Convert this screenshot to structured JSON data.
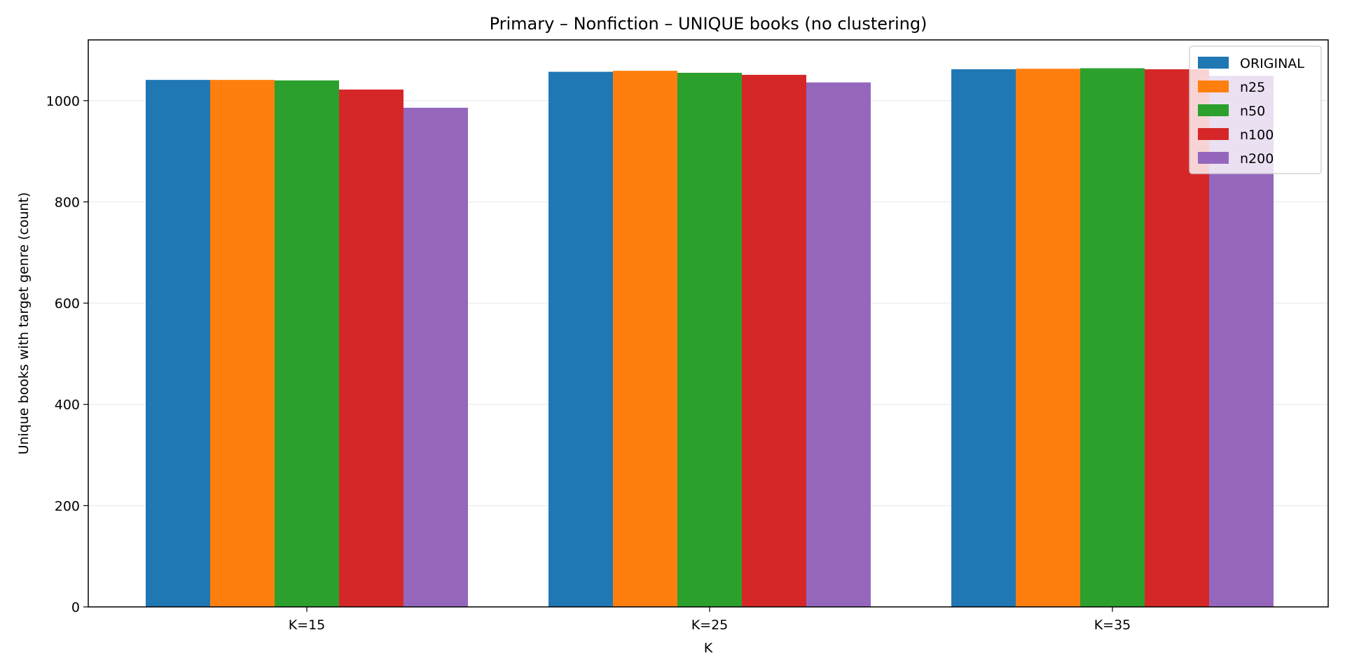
{
  "chart_data": {
    "type": "bar",
    "title": "Primary – Nonfiction – UNIQUE books (no clustering)",
    "xlabel": "K",
    "ylabel": "Unique books with target genre (count)",
    "categories": [
      "K=15",
      "K=25",
      "K=35"
    ],
    "ylim": [
      0,
      1120
    ],
    "yticks": [
      0,
      200,
      400,
      600,
      800,
      1000
    ],
    "grid": "y",
    "legend_position": "top-right",
    "series": [
      {
        "name": "ORIGINAL",
        "color": "#1f77b4",
        "values": [
          1041,
          1057,
          1062
        ]
      },
      {
        "name": "n25",
        "color": "#ff7f0e",
        "values": [
          1041,
          1059,
          1063
        ]
      },
      {
        "name": "n50",
        "color": "#2ca02c",
        "values": [
          1040,
          1055,
          1064
        ]
      },
      {
        "name": "n100",
        "color": "#d62728",
        "values": [
          1022,
          1051,
          1062
        ]
      },
      {
        "name": "n200",
        "color": "#9467bd",
        "values": [
          986,
          1036,
          1049
        ]
      }
    ]
  }
}
